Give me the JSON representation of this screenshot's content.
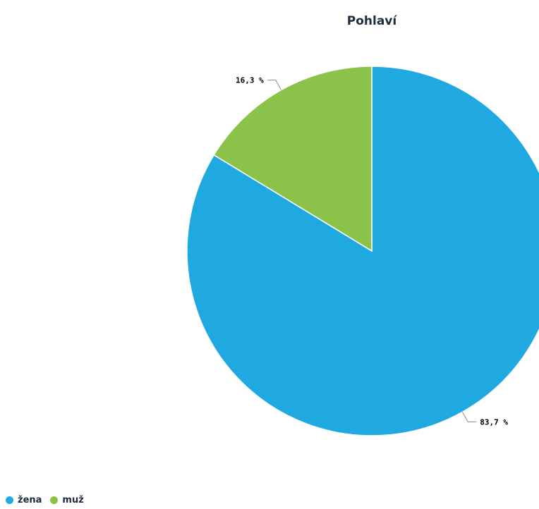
{
  "chart_data": {
    "type": "pie",
    "title": "Pohlaví",
    "categories": [
      "žena",
      "muž"
    ],
    "values": [
      83.7,
      16.3
    ],
    "value_labels": [
      "83,7 %",
      "16,3 %"
    ],
    "colors": [
      "#20a9e1",
      "#8bc34a"
    ],
    "start_angle": "12 o'clock",
    "direction": "clockwise",
    "legend_position": "bottom-left"
  }
}
